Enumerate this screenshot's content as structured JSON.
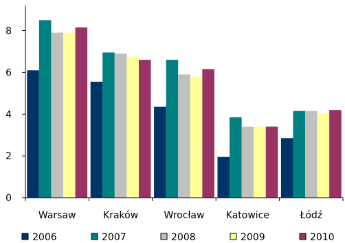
{
  "chart_data": {
    "type": "bar",
    "categories": [
      "Warsaw",
      "Kraków",
      "Wrocław",
      "Katowice",
      "Łódź"
    ],
    "series": [
      {
        "name": "2006",
        "color": "#003366",
        "values": [
          6.1,
          5.55,
          4.35,
          1.95,
          2.85
        ]
      },
      {
        "name": "2007",
        "color": "#008080",
        "values": [
          8.5,
          6.95,
          6.6,
          3.85,
          4.15
        ]
      },
      {
        "name": "2008",
        "color": "#c0c0c0",
        "values": [
          7.9,
          6.9,
          5.9,
          3.4,
          4.15
        ]
      },
      {
        "name": "2009",
        "color": "#ffff99",
        "values": [
          7.9,
          6.75,
          5.8,
          3.4,
          4.05
        ]
      },
      {
        "name": "2010",
        "color": "#993366",
        "values": [
          8.15,
          6.6,
          6.15,
          3.4,
          4.2
        ]
      }
    ],
    "yticks": [
      0,
      2,
      4,
      6,
      8
    ],
    "ylim": [
      0,
      9.2
    ],
    "grid": false,
    "legend": "bottom",
    "xlabel": "",
    "ylabel": ""
  }
}
